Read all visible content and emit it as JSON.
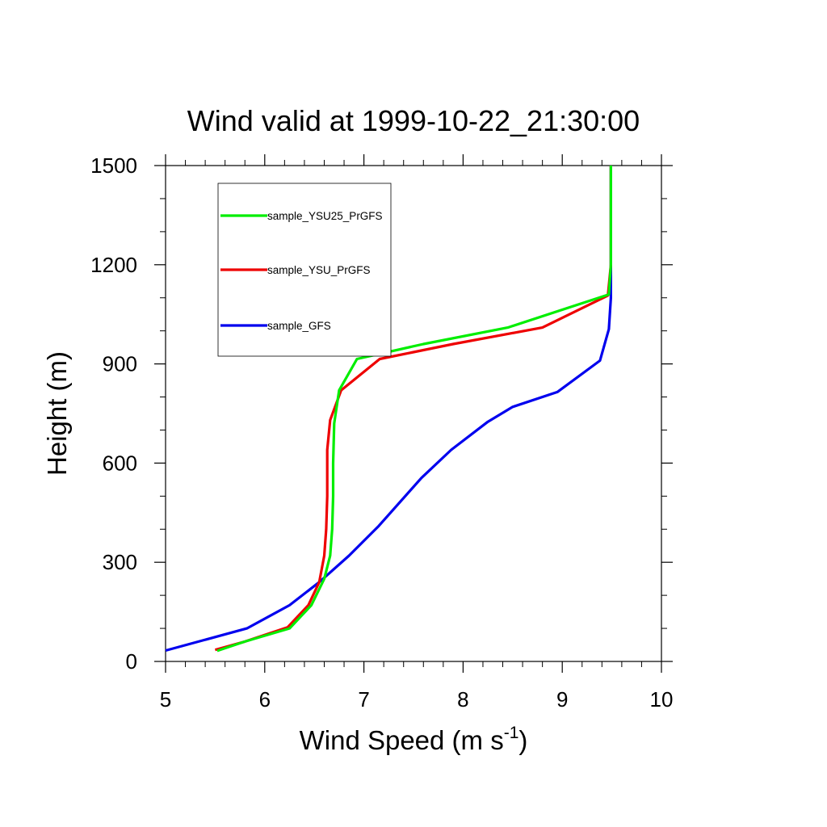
{
  "chart_data": {
    "type": "line",
    "title": "Wind valid at 1999-10-22_21:30:00",
    "xlabel": "Wind Speed (m s",
    "xlabel_sup": "-1",
    "xlabel_close": ")",
    "ylabel": "Height (m)",
    "xlim": [
      5,
      10
    ],
    "ylim": [
      0,
      1500
    ],
    "xticks": [
      5,
      6,
      7,
      8,
      9,
      10
    ],
    "yticks": [
      0,
      300,
      600,
      900,
      1200,
      1500
    ],
    "grid": false,
    "legend_position": "top-left",
    "series": [
      {
        "name": "sample_YSU25_PrGFS",
        "color": "#00ee00",
        "points": [
          [
            5.52,
            32
          ],
          [
            5.8,
            60
          ],
          [
            6.25,
            100
          ],
          [
            6.47,
            170
          ],
          [
            6.6,
            250
          ],
          [
            6.66,
            320
          ],
          [
            6.68,
            400
          ],
          [
            6.69,
            500
          ],
          [
            6.69,
            600
          ],
          [
            6.7,
            720
          ],
          [
            6.75,
            820
          ],
          [
            6.93,
            915
          ],
          [
            7.6,
            960
          ],
          [
            8.45,
            1010
          ],
          [
            9.47,
            1110
          ],
          [
            9.49,
            1200
          ],
          [
            9.49,
            1300
          ],
          [
            9.49,
            1500
          ]
        ]
      },
      {
        "name": "sample_YSU_PrGFS",
        "color": "#ee0000",
        "points": [
          [
            5.5,
            35
          ],
          [
            5.8,
            60
          ],
          [
            6.23,
            103
          ],
          [
            6.44,
            170
          ],
          [
            6.55,
            240
          ],
          [
            6.6,
            320
          ],
          [
            6.62,
            400
          ],
          [
            6.63,
            500
          ],
          [
            6.63,
            640
          ],
          [
            6.66,
            730
          ],
          [
            6.77,
            820
          ],
          [
            7.16,
            915
          ],
          [
            7.9,
            960
          ],
          [
            8.8,
            1010
          ],
          [
            9.46,
            1107
          ],
          [
            9.49,
            1200
          ],
          [
            9.49,
            1300
          ],
          [
            9.49,
            1500
          ]
        ]
      },
      {
        "name": "sample_GFS",
        "color": "#0000ee",
        "points": [
          [
            5.0,
            33
          ],
          [
            5.82,
            100
          ],
          [
            6.25,
            170
          ],
          [
            6.55,
            240
          ],
          [
            6.85,
            320
          ],
          [
            7.15,
            410
          ],
          [
            7.58,
            555
          ],
          [
            7.88,
            640
          ],
          [
            8.25,
            725
          ],
          [
            8.5,
            770
          ],
          [
            8.95,
            815
          ],
          [
            9.38,
            910
          ],
          [
            9.47,
            1005
          ],
          [
            9.49,
            1100
          ],
          [
            9.49,
            1200
          ],
          [
            9.49,
            1300
          ],
          [
            9.49,
            1500
          ]
        ]
      }
    ]
  }
}
